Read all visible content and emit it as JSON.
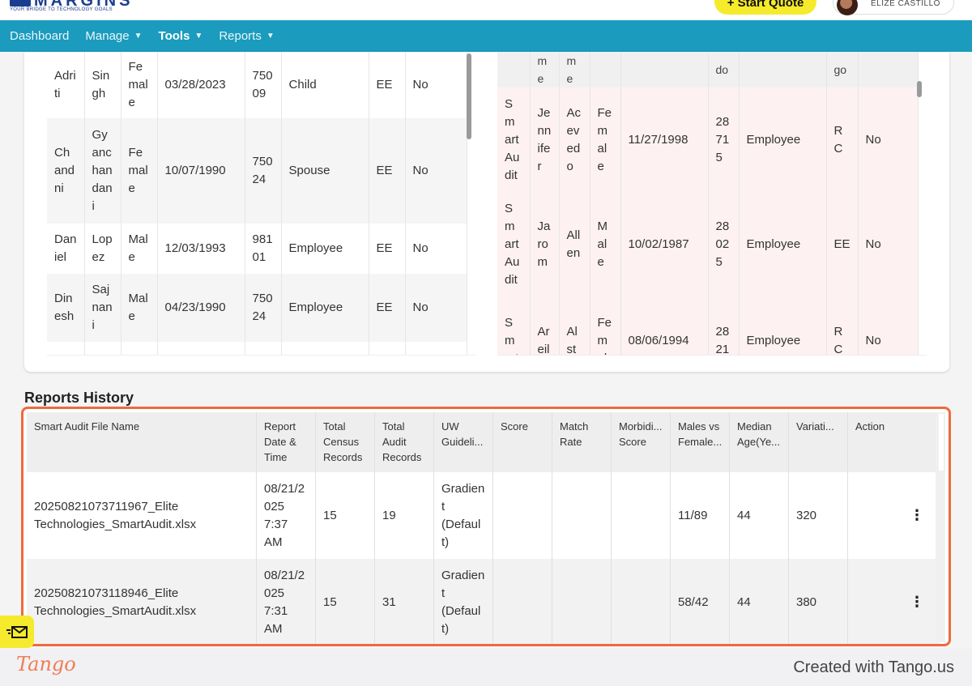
{
  "brand": {
    "name": "MARGINS",
    "tagline": "YOUR BRIDGE TO TECHNOLOGY GOALS",
    "start_quote_label": "+ Start Quote",
    "user_name": "ELIZE CASTILLO",
    "accent": "#1b9bbd",
    "quote_color": "#f6ea2c"
  },
  "nav": {
    "dashboard": "Dashboard",
    "manage": "Manage",
    "tools": "Tools",
    "reports": "Reports"
  },
  "left_census": [
    [
      "Adri ti",
      "Sin gh",
      "Fe mal e",
      "03/28/2023",
      "750 09",
      "Child",
      "EE",
      "No"
    ],
    [
      "Ch and ni",
      "Gy anc han dan i",
      "Fe mal e",
      "10/07/1990",
      "750 24",
      "Spouse",
      "EE",
      "No"
    ],
    [
      "Dan iel",
      "Lop ez",
      "Mal e",
      "12/03/1993",
      "981 01",
      "Employee",
      "EE",
      "No"
    ],
    [
      "Din esh",
      "Saj nan i",
      "Mal e",
      "04/23/1990",
      "750 24",
      "Employee",
      "EE",
      "No"
    ]
  ],
  "right_census_header": [
    "",
    "m e",
    "m e",
    "",
    "",
    "do",
    "",
    "go",
    ""
  ],
  "right_census": [
    [
      "S m art Au dit",
      "Je nn ife r",
      "Ac ev ed o",
      "Fe m al e",
      "11/27/1998",
      "28 71 5",
      "Employee",
      "R C",
      "No"
    ],
    [
      "S m art Au dit",
      "Ja ro m",
      "All en",
      "M al e",
      "10/02/1987",
      "28 02 5",
      "Employee",
      "EE",
      "No"
    ],
    [
      "S m art",
      "Ar eil",
      "Al st",
      "Fe m al",
      "08/06/1994",
      "28 21",
      "Employee",
      "R C",
      "No"
    ]
  ],
  "reports_history": {
    "title": "Reports History",
    "columns": [
      "Smart Audit File Name",
      "Report Date & Time",
      "Total Census Records",
      "Total Audit Records",
      "UW Guideli...",
      "Score",
      "Match Rate",
      "Morbidi... Score",
      "Males vs Female...",
      "Median Age(Ye...",
      "Variati...",
      "Action"
    ],
    "rows": [
      [
        "20250821073711967_Elite Technologies_SmartAudit.xlsx",
        "08/21/2 025 7:37 AM",
        "15",
        "19",
        "Gradien t (Defaul t)",
        "",
        "",
        "",
        "11/89",
        "44",
        "320"
      ],
      [
        "20250821073118946_Elite Technologies_SmartAudit.xlsx",
        "08/21/2 025 7:31 AM",
        "15",
        "31",
        "Gradien t (Defaul t)",
        "",
        "",
        "",
        "58/42",
        "44",
        "380"
      ]
    ],
    "highlight_color": "#ef6a3c"
  },
  "footer": {
    "logo": "Tango",
    "created": "Created with Tango.us"
  }
}
